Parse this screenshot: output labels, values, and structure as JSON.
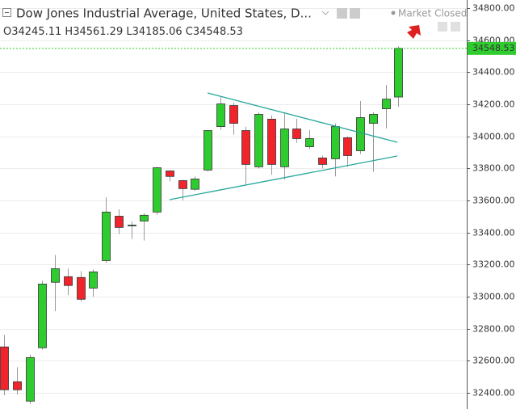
{
  "chart_data": {
    "type": "candlestick",
    "title": "Dow Jones Industrial Average, United States, D...",
    "status": "Market Closed",
    "ohlc_letters": [
      "O",
      "H",
      "L",
      "C"
    ],
    "up_color": "#2ecc2e",
    "down_color": "#f0242a",
    "open": [
      32687,
      32470,
      32349,
      32682,
      33090,
      33125,
      33120,
      33054,
      33225,
      33502,
      33445,
      33472,
      33528,
      33784,
      33724,
      33670,
      33790,
      34061,
      34192,
      34036,
      33810,
      34107,
      33810,
      34046,
      33935,
      33865,
      33860,
      33991,
      33910,
      34081,
      34172,
      34245.11
    ],
    "high": [
      32762,
      32560,
      32640,
      33100,
      33260,
      33175,
      33160,
      33170,
      33620,
      33545,
      33470,
      33520,
      33810,
      33790,
      33730,
      33750,
      34040,
      34250,
      34210,
      34060,
      34150,
      34130,
      34150,
      34110,
      34040,
      33880,
      34080,
      34000,
      34220,
      34150,
      34320,
      34561.29
    ],
    "low": [
      32385,
      32390,
      32330,
      32670,
      32910,
      33010,
      32970,
      33000,
      33210,
      33390,
      33360,
      33350,
      33510,
      33720,
      33600,
      33660,
      33780,
      34040,
      34010,
      33700,
      33800,
      33760,
      33730,
      33960,
      33920,
      33800,
      33750,
      33810,
      33890,
      33780,
      34050,
      34185.06
    ],
    "close": [
      32420,
      32420,
      32621,
      33079,
      33175,
      33070,
      32984,
      33155,
      33528,
      33432,
      33447,
      33508,
      33804,
      33750,
      33674,
      33734,
      34036,
      34202,
      34081,
      33825,
      34137,
      33825,
      34046,
      33986,
      33986,
      33825,
      34061,
      33880,
      34117,
      34137,
      34232,
      34548.53
    ],
    "ylim": [
      32300,
      34850
    ],
    "yticks": [
      {
        "value": 32400,
        "label": "32400.00"
      },
      {
        "value": 32600,
        "label": "32600.00"
      },
      {
        "value": 32800,
        "label": "32800.00"
      },
      {
        "value": 33000,
        "label": "33000.00"
      },
      {
        "value": 33200,
        "label": "33200.00"
      },
      {
        "value": 33400,
        "label": "33400.00"
      },
      {
        "value": 33600,
        "label": "33600.00"
      },
      {
        "value": 33800,
        "label": "33800.00"
      },
      {
        "value": 34000,
        "label": "34000.00"
      },
      {
        "value": 34200,
        "label": "34200.00"
      },
      {
        "value": 34400,
        "label": "34400.00"
      },
      {
        "value": 34600,
        "label": "34600.00"
      },
      {
        "value": 34800,
        "label": "34800.00"
      }
    ],
    "grid": true
  }
}
